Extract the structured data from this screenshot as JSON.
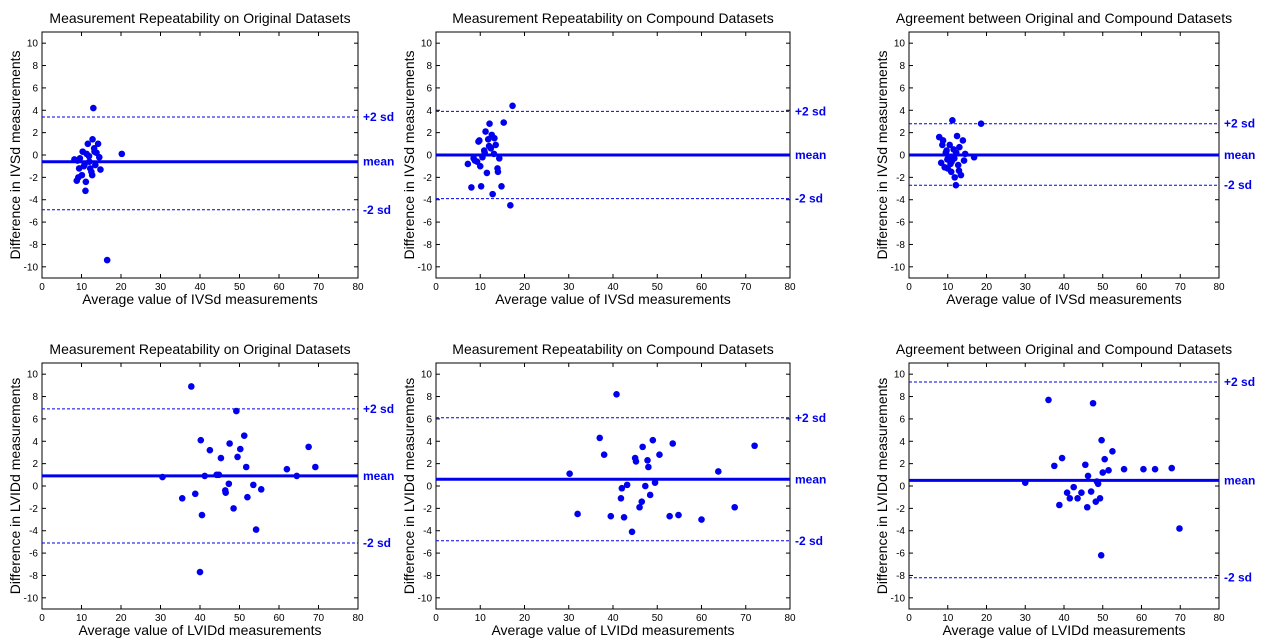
{
  "colors": {
    "marker": "#0000ee",
    "axis": "#000000",
    "background": "#ffffff"
  },
  "chart_data": [
    {
      "type": "scatter",
      "title": "Measurement Repeatability on Original Datasets",
      "xlabel": "Average value of IVSd measurements",
      "ylabel": "Difference in IVSd measurements",
      "xlim": [
        0,
        80
      ],
      "ylim": [
        -11,
        11
      ],
      "xticks": [
        0,
        10,
        20,
        30,
        40,
        50,
        60,
        70,
        80
      ],
      "yticks": [
        -10,
        -8,
        -6,
        -4,
        -2,
        0,
        2,
        4,
        6,
        8,
        10
      ],
      "mean": -0.6,
      "plus2sd": 3.4,
      "minus2sd": -4.9,
      "line_labels": {
        "mean": "mean",
        "plus2sd": "+2 sd",
        "minus2sd": "-2 sd"
      },
      "x": [
        8.2,
        8.8,
        9.0,
        9.4,
        9.2,
        10.1,
        10.3,
        10.8,
        11.0,
        11.3,
        11.6,
        12.0,
        12.2,
        12.5,
        12.8,
        13.0,
        13.2,
        13.5,
        13.8,
        14.2,
        14.5,
        14.8,
        9.6,
        10.6,
        11.9,
        13.3,
        11.1,
        12.7,
        16.5,
        20.2
      ],
      "y": [
        -0.4,
        -2.3,
        -0.5,
        -1.2,
        -2.0,
        -1.8,
        0.3,
        -0.8,
        -3.2,
        0.1,
        1.0,
        -0.6,
        -1.2,
        -1.5,
        1.4,
        4.2,
        0.6,
        -0.9,
        0.2,
        1.0,
        -0.2,
        -1.3,
        -0.3,
        -1.0,
        -0.1,
        0.3,
        -2.4,
        -1.8,
        -9.4,
        0.1
      ]
    },
    {
      "type": "scatter",
      "title": "Measurement Repeatability on Compound Datasets",
      "xlabel": "Average value of IVSd measurements",
      "ylabel": "Difference in IVSd measurements",
      "xlim": [
        0,
        80
      ],
      "ylim": [
        -11,
        11
      ],
      "xticks": [
        0,
        10,
        20,
        30,
        40,
        50,
        60,
        70,
        80
      ],
      "yticks": [
        -10,
        -8,
        -6,
        -4,
        -2,
        0,
        2,
        4,
        6,
        8,
        10
      ],
      "mean": 0.0,
      "plus2sd": 3.9,
      "minus2sd": -3.9,
      "line_labels": {
        "mean": "mean",
        "plus2sd": "+2 sd",
        "minus2sd": "-2 sd"
      },
      "x": [
        7.2,
        8.0,
        8.8,
        9.3,
        9.8,
        10.2,
        10.5,
        10.9,
        11.2,
        11.5,
        11.8,
        12.1,
        12.4,
        12.8,
        13.1,
        13.5,
        13.9,
        14.3,
        14.8,
        15.3,
        16.8,
        17.3,
        9.6,
        12.6,
        11.0,
        13.2,
        8.5,
        10.0,
        14.0,
        12.0
      ],
      "y": [
        -0.8,
        -2.9,
        -0.5,
        -0.6,
        1.3,
        -2.8,
        -0.2,
        0.4,
        2.1,
        -1.6,
        1.4,
        2.8,
        0.6,
        -3.5,
        0.1,
        0.9,
        -1.2,
        -0.3,
        -2.8,
        2.9,
        -4.5,
        4.4,
        1.2,
        1.8,
        0.2,
        1.5,
        -0.3,
        -1.0,
        -1.5,
        0.8
      ]
    },
    {
      "type": "scatter",
      "title": "Agreement between Original and Compound Datasets",
      "xlabel": "Average value of IVSd measurements",
      "ylabel": "Difference in IVSd measurements",
      "xlim": [
        0,
        80
      ],
      "ylim": [
        -11,
        11
      ],
      "xticks": [
        0,
        10,
        20,
        30,
        40,
        50,
        60,
        70,
        80
      ],
      "yticks": [
        -10,
        -8,
        -6,
        -4,
        -2,
        0,
        2,
        4,
        6,
        8,
        10
      ],
      "mean": 0.0,
      "plus2sd": 2.8,
      "minus2sd": -2.7,
      "line_labels": {
        "mean": "mean",
        "plus2sd": "+2 sd",
        "minus2sd": "-2 sd"
      },
      "x": [
        7.8,
        8.3,
        8.8,
        9.2,
        9.5,
        9.9,
        10.2,
        10.5,
        10.9,
        11.2,
        11.5,
        11.8,
        12.1,
        12.4,
        12.7,
        13.0,
        13.4,
        13.9,
        14.5,
        16.8,
        18.6,
        11.0,
        8.6,
        10.0,
        12.9,
        9.7,
        11.7,
        10.7,
        12.2,
        14.2
      ],
      "y": [
        1.6,
        -0.7,
        1.3,
        -1.1,
        0.2,
        -0.4,
        -0.2,
        0.9,
        -1.5,
        3.1,
        0.5,
        -2.0,
        -2.7,
        1.7,
        -0.9,
        0.7,
        -1.8,
        1.3,
        0.1,
        -0.2,
        2.8,
        -0.6,
        0.9,
        -1.2,
        -1.4,
        0.4,
        -0.3,
        -0.8,
        0.2,
        -0.5
      ]
    },
    {
      "type": "scatter",
      "title": "Measurement Repeatability on Original Datasets",
      "xlabel": "Average value of LVIDd measurements",
      "ylabel": "Difference in LVIDd measurements",
      "xlim": [
        0,
        80
      ],
      "ylim": [
        -11,
        11
      ],
      "xticks": [
        0,
        10,
        20,
        30,
        40,
        50,
        60,
        70,
        80
      ],
      "yticks": [
        -10,
        -8,
        -6,
        -4,
        -2,
        0,
        2,
        4,
        6,
        8,
        10
      ],
      "mean": 0.9,
      "plus2sd": 6.9,
      "minus2sd": -5.1,
      "line_labels": {
        "mean": "mean",
        "plus2sd": "+2 sd",
        "minus2sd": "-2 sd"
      },
      "x": [
        30.5,
        35.5,
        37.8,
        38.8,
        40.2,
        40.5,
        41.2,
        42.5,
        44.2,
        45.3,
        46.5,
        47.3,
        47.5,
        48.5,
        49.2,
        50.2,
        51.2,
        52.0,
        53.5,
        55.5,
        62.0,
        64.5,
        67.5,
        69.2,
        40.0,
        44.8,
        46.4,
        49.5,
        51.7,
        54.2
      ],
      "y": [
        0.8,
        -1.1,
        8.9,
        -0.7,
        4.1,
        -2.6,
        0.9,
        3.2,
        1.0,
        2.5,
        -0.6,
        0.2,
        3.8,
        -2.0,
        6.7,
        3.3,
        4.5,
        -1.0,
        0.1,
        -0.3,
        1.5,
        0.9,
        3.5,
        1.7,
        -7.7,
        1.0,
        -0.4,
        2.6,
        1.7,
        -3.9
      ]
    },
    {
      "type": "scatter",
      "title": "Measurement Repeatability on Compound Datasets",
      "xlabel": "Average value of LVIDd measurements",
      "ylabel": "Difference in LVIDd measurements",
      "xlim": [
        0,
        80
      ],
      "ylim": [
        -11,
        11
      ],
      "xticks": [
        0,
        10,
        20,
        30,
        40,
        50,
        60,
        70,
        80
      ],
      "yticks": [
        -10,
        -8,
        -6,
        -4,
        -2,
        0,
        2,
        4,
        6,
        8,
        10
      ],
      "mean": 0.6,
      "plus2sd": 6.1,
      "minus2sd": -4.9,
      "line_labels": {
        "mean": "mean",
        "plus2sd": "+2 sd",
        "minus2sd": "-2 sd"
      },
      "x": [
        30.2,
        32.0,
        37.0,
        38.0,
        39.5,
        40.8,
        41.8,
        42.5,
        43.2,
        44.3,
        45.0,
        46.0,
        46.7,
        47.3,
        47.8,
        48.4,
        49.0,
        49.5,
        50.5,
        52.8,
        53.5,
        54.8,
        60.0,
        63.8,
        67.5,
        72.0,
        45.2,
        48.0,
        42.0,
        46.5
      ],
      "y": [
        1.1,
        -2.5,
        4.3,
        2.8,
        -2.7,
        8.2,
        -1.1,
        -2.8,
        0.1,
        -4.1,
        2.5,
        -1.9,
        3.5,
        0.0,
        2.3,
        -0.8,
        4.1,
        0.3,
        2.8,
        -2.7,
        3.8,
        -2.6,
        -3.0,
        1.3,
        -1.9,
        3.6,
        2.2,
        1.7,
        -0.2,
        -1.4
      ]
    },
    {
      "type": "scatter",
      "title": "Agreement between Original and Compound Datasets",
      "xlabel": "Average value of LVIDd measurements",
      "ylabel": "Difference in LVIDd measurements",
      "xlim": [
        0,
        80
      ],
      "ylim": [
        -11,
        11
      ],
      "xticks": [
        0,
        10,
        20,
        30,
        40,
        50,
        60,
        70,
        80
      ],
      "yticks": [
        -10,
        -8,
        -6,
        -4,
        -2,
        0,
        2,
        4,
        6,
        8,
        10
      ],
      "mean": 0.5,
      "plus2sd": 9.3,
      "minus2sd": -8.2,
      "line_labels": {
        "mean": "mean",
        "plus2sd": "+2 sd",
        "minus2sd": "-2 sd"
      },
      "x": [
        30.0,
        36.0,
        37.5,
        38.8,
        39.5,
        40.8,
        41.5,
        42.5,
        43.5,
        44.5,
        45.5,
        46.0,
        47.0,
        47.5,
        48.2,
        48.8,
        49.3,
        49.7,
        50.0,
        50.5,
        51.5,
        52.5,
        55.5,
        60.5,
        63.5,
        67.8,
        69.8,
        49.6,
        46.2,
        48.5
      ],
      "y": [
        0.3,
        7.7,
        1.8,
        -1.7,
        2.5,
        -0.6,
        -1.1,
        -0.1,
        -1.1,
        -0.6,
        1.9,
        -1.9,
        -0.5,
        7.4,
        -1.4,
        0.2,
        -1.1,
        4.1,
        1.2,
        2.4,
        1.4,
        3.1,
        1.5,
        1.5,
        1.5,
        1.6,
        -3.8,
        -6.2,
        0.9,
        0.4
      ]
    }
  ]
}
